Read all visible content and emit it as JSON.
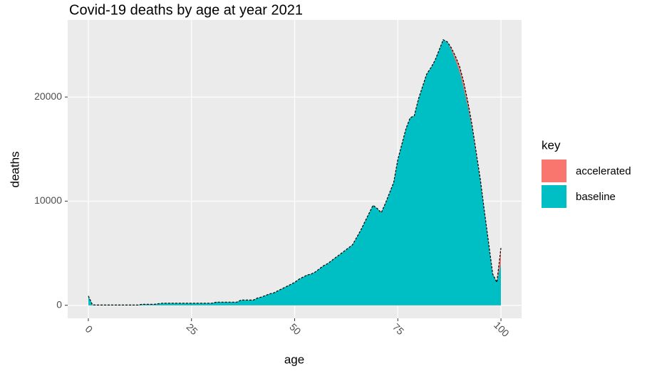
{
  "chart_data": {
    "type": "area",
    "title": "Covid-19 deaths by age at year 2021",
    "x_label": "age",
    "y_label": "deaths",
    "legend_title": "key",
    "x": [
      0,
      1,
      2,
      3,
      4,
      5,
      6,
      7,
      8,
      9,
      10,
      11,
      12,
      13,
      14,
      15,
      16,
      17,
      18,
      19,
      20,
      21,
      22,
      23,
      24,
      25,
      26,
      27,
      28,
      29,
      30,
      31,
      32,
      33,
      34,
      35,
      36,
      37,
      38,
      39,
      40,
      41,
      42,
      43,
      44,
      45,
      46,
      47,
      48,
      49,
      50,
      51,
      52,
      53,
      54,
      55,
      56,
      57,
      58,
      59,
      60,
      61,
      62,
      63,
      64,
      65,
      66,
      67,
      68,
      69,
      70,
      71,
      72,
      73,
      74,
      75,
      76,
      77,
      78,
      79,
      80,
      81,
      82,
      83,
      84,
      85,
      86,
      87,
      88,
      89,
      90,
      91,
      92,
      93,
      94,
      95,
      96,
      97,
      98,
      99,
      100
    ],
    "series": [
      {
        "name": "accelerated",
        "color": "#F8766D",
        "values": [
          900,
          50,
          20,
          20,
          20,
          20,
          20,
          20,
          20,
          20,
          20,
          20,
          20,
          100,
          100,
          100,
          100,
          150,
          200,
          200,
          200,
          200,
          200,
          200,
          200,
          200,
          200,
          200,
          200,
          200,
          200,
          300,
          300,
          300,
          300,
          300,
          300,
          500,
          500,
          500,
          500,
          700,
          800,
          950,
          1100,
          1200,
          1400,
          1600,
          1800,
          2000,
          2200,
          2500,
          2700,
          2900,
          3000,
          3200,
          3500,
          3800,
          4000,
          4300,
          4600,
          4900,
          5200,
          5500,
          5800,
          6500,
          7200,
          8000,
          8800,
          9600,
          9300,
          8900,
          9800,
          10800,
          11800,
          14000,
          15500,
          17000,
          18000,
          18200,
          19800,
          21000,
          22200,
          22800,
          23500,
          24500,
          25500,
          25300,
          24700,
          23900,
          22900,
          21400,
          19500,
          17300,
          14700,
          12100,
          9000,
          6000,
          3000,
          2200,
          5500
        ]
      },
      {
        "name": "baseline",
        "color": "#00BFC4",
        "values": [
          900,
          50,
          20,
          20,
          20,
          20,
          20,
          20,
          20,
          20,
          20,
          20,
          20,
          100,
          100,
          100,
          100,
          150,
          200,
          200,
          200,
          200,
          200,
          200,
          200,
          200,
          200,
          200,
          200,
          200,
          200,
          300,
          300,
          300,
          300,
          300,
          300,
          500,
          500,
          500,
          500,
          700,
          800,
          950,
          1100,
          1200,
          1400,
          1600,
          1800,
          2000,
          2200,
          2500,
          2700,
          2900,
          3000,
          3200,
          3500,
          3800,
          4000,
          4300,
          4600,
          4900,
          5200,
          5500,
          5800,
          6500,
          7200,
          8000,
          8800,
          9600,
          9300,
          8900,
          9800,
          10800,
          11800,
          14000,
          15500,
          17000,
          18000,
          18200,
          19800,
          21000,
          22200,
          22800,
          23500,
          24500,
          25500,
          25300,
          24500,
          23500,
          22400,
          20800,
          19000,
          17000,
          14500,
          12000,
          9000,
          6000,
          3000,
          2200,
          4000
        ]
      }
    ],
    "xlim": [
      -5,
      105
    ],
    "xticks": [
      0,
      25,
      50,
      75,
      100
    ],
    "ylim": [
      -1250,
      27400
    ],
    "yticks": [
      0,
      10000,
      20000
    ],
    "grid": true,
    "legend": "right"
  }
}
